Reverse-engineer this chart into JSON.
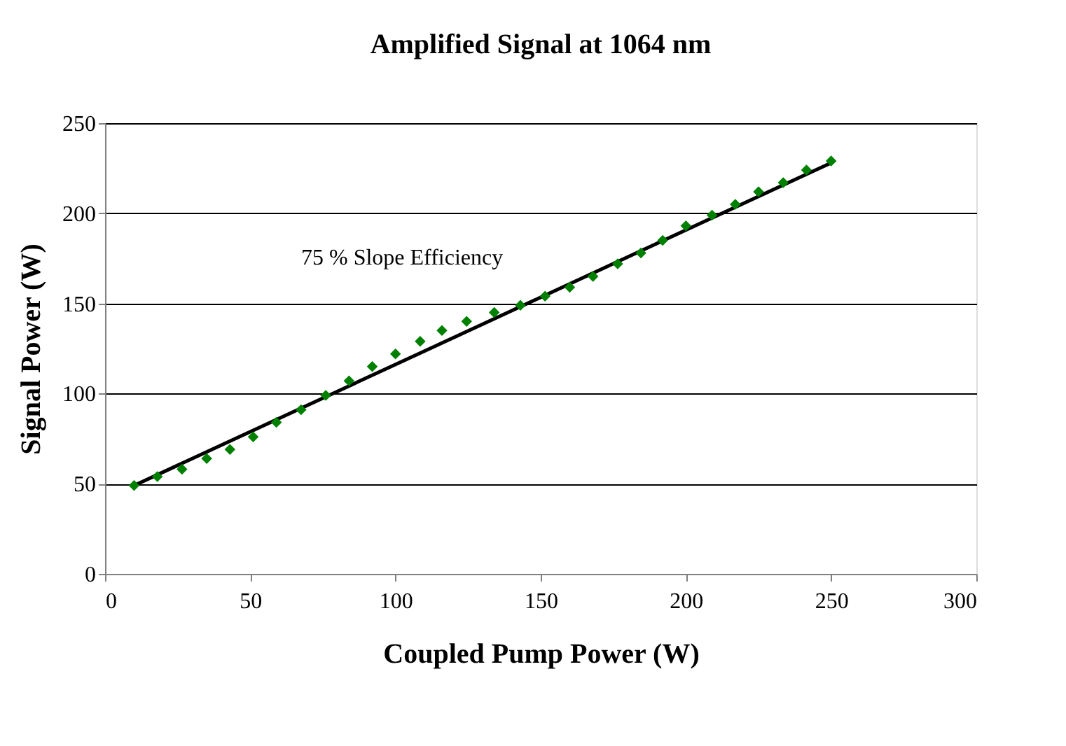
{
  "chart_data": {
    "type": "scatter",
    "title": "Amplified Signal at 1064 nm",
    "xlabel": "Coupled Pump Power (W)",
    "ylabel": "Signal Power (W)",
    "xlim": [
      0,
      300
    ],
    "xticks": [
      0,
      50,
      100,
      150,
      200,
      250,
      300
    ],
    "ylim": [
      0,
      250
    ],
    "yticks": [
      0,
      50,
      100,
      150,
      200,
      250
    ],
    "grid": "y",
    "annotations": [
      "75 % Slope Efficiency"
    ],
    "series": [
      {
        "marker": "diamond",
        "color": "#008000",
        "x": [
          10,
          18,
          26.5,
          35,
          43,
          51,
          59,
          67.5,
          76,
          84,
          92,
          100,
          108.5,
          116,
          124.5,
          134,
          143,
          151.5,
          160,
          168,
          176.5,
          184.5,
          192,
          200,
          209,
          217,
          225,
          233.5,
          241.5,
          250
        ],
        "values": [
          49,
          54,
          58,
          64,
          69,
          76,
          84,
          91,
          99,
          107,
          115,
          122,
          129,
          135,
          140,
          145,
          149,
          154,
          159,
          165,
          172,
          178,
          185,
          193,
          199,
          205,
          212,
          217,
          224,
          229
        ]
      },
      {
        "type": "line",
        "color": "#000000",
        "line_style": "solid",
        "x": [
          10,
          250
        ],
        "values": [
          49,
          228
        ]
      }
    ]
  }
}
